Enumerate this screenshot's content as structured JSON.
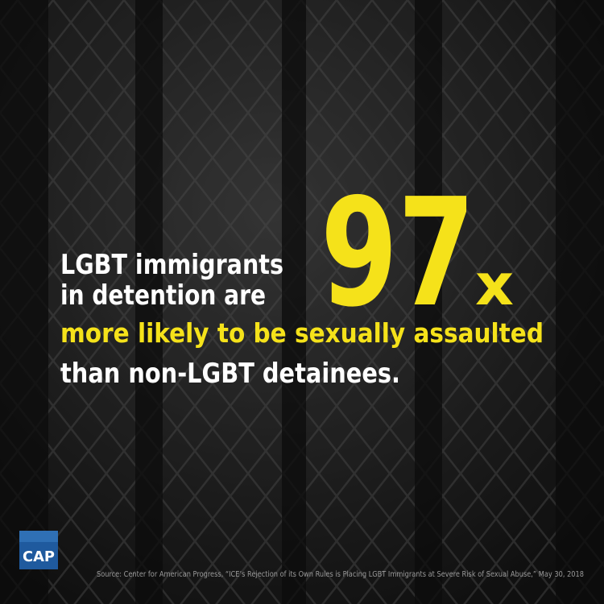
{
  "headline": {
    "line1": "LGBT immigrants",
    "line2": "in detention are",
    "stat_number": "97",
    "stat_suffix": "x",
    "highlight": "more likely to be sexually assaulted",
    "line4": "than non-LGBT detainees."
  },
  "logo": "CAP",
  "source": "Source: Center for American Progress, “ICE’s Rejection of its Own Rules is Placing LGBT Immigrants at Severe Risk of Sexual Abuse,” May 30, 2018"
}
